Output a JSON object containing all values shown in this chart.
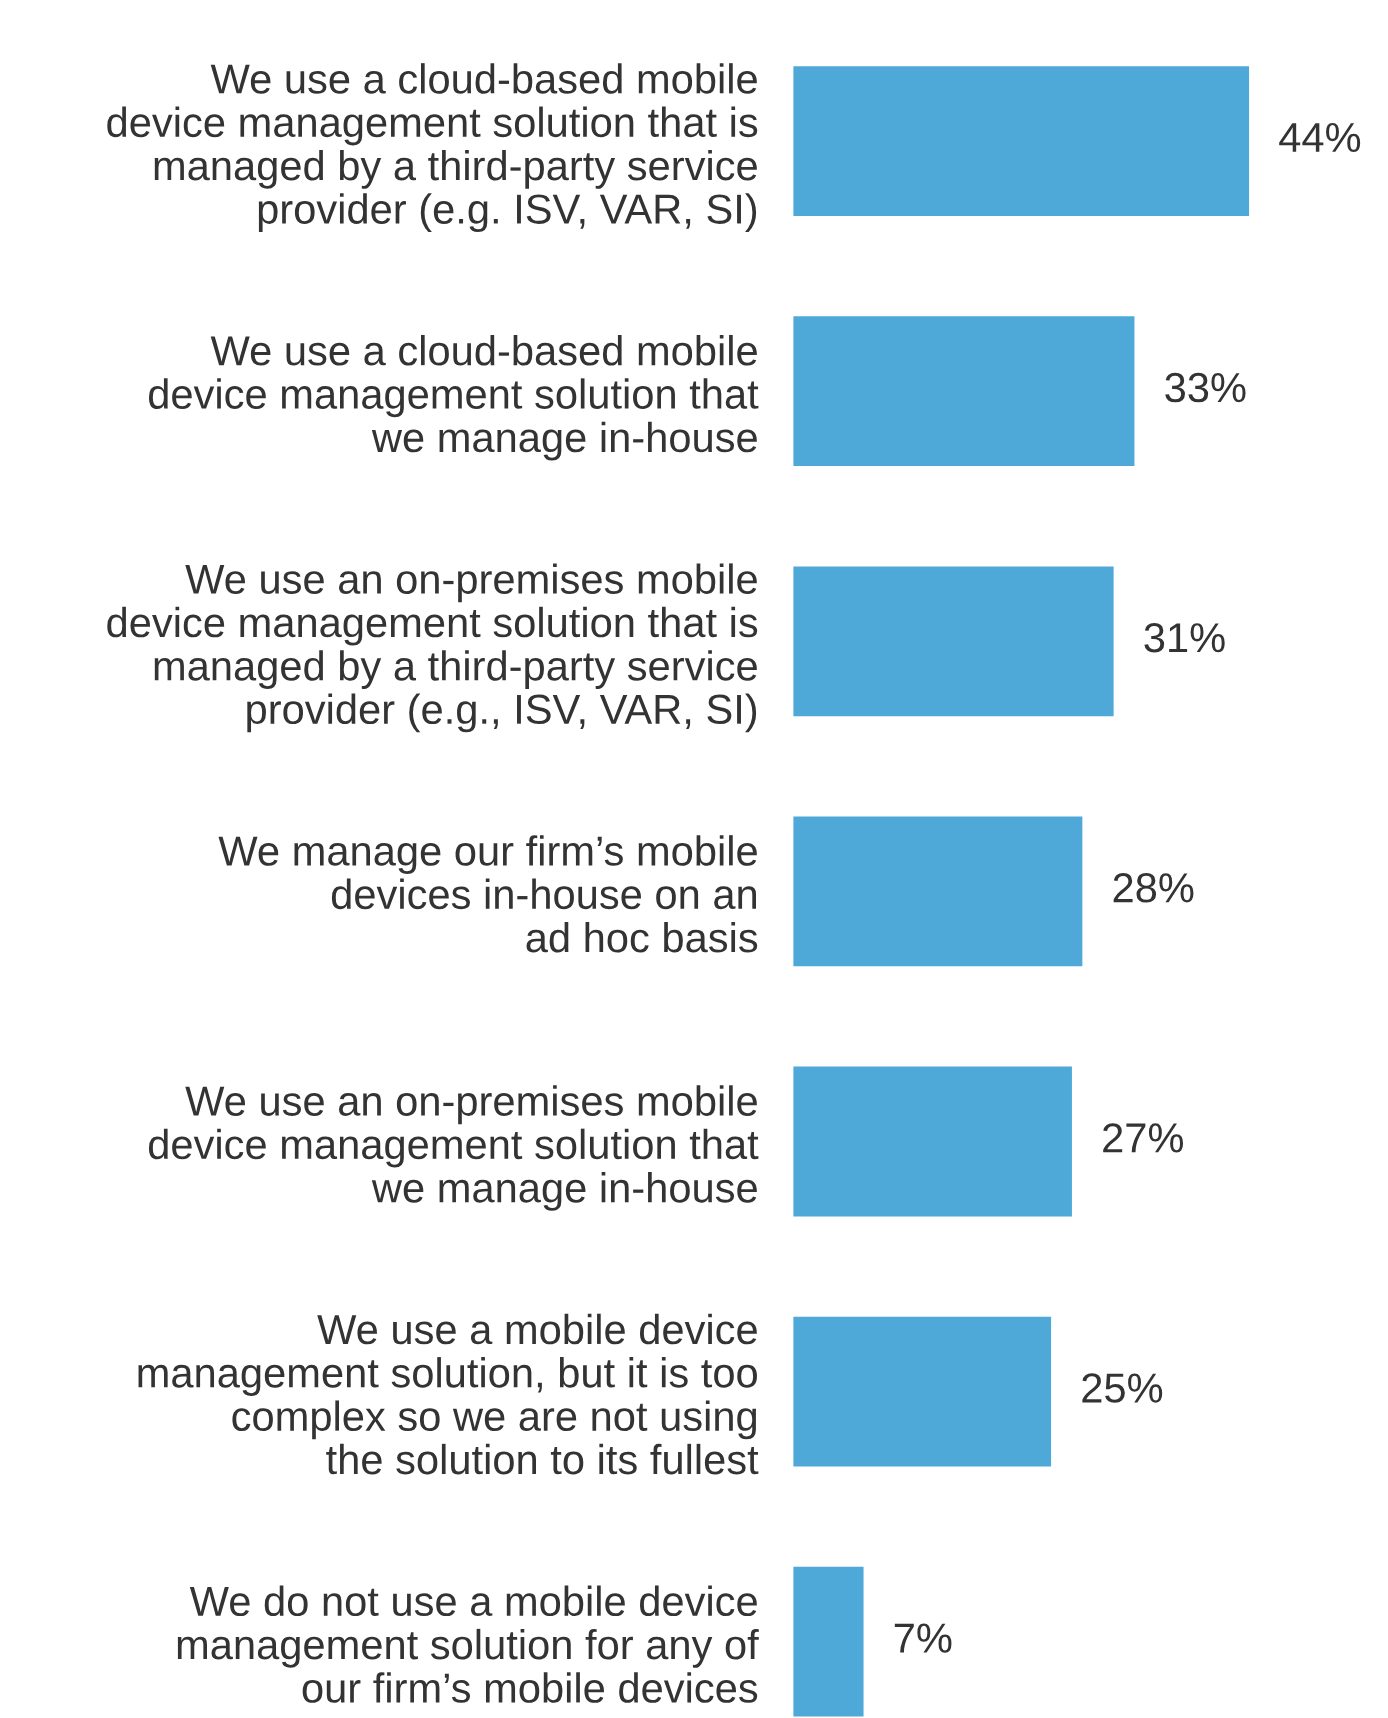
{
  "chart_data": {
    "type": "bar",
    "orientation": "horizontal",
    "categories": [
      "We use a cloud-based mobile\ndevice management solution that is\nmanaged by a third-party service\nprovider (e.g. ISV, VAR, SI)",
      "We use a cloud-based mobile\ndevice management solution that\nwe manage in-house",
      "We use an on-premises mobile\ndevice management solution that is\nmanaged by a third-party service\nprovider (e.g., ISV, VAR, SI)",
      "We manage our firm’s mobile\ndevices in-house on an\nad hoc basis",
      "We use an on-premises mobile\ndevice management solution that\nwe manage in-house",
      "We use a mobile device\nmanagement solution, but it is too\ncomplex so we are not using\nthe solution to its fullest",
      "We do not use a mobile device\nmanagement solution for any of\nour firm’s mobile devices"
    ],
    "values": [
      44,
      33,
      31,
      28,
      27,
      25,
      7
    ],
    "value_labels": [
      "44%",
      "33%",
      "31%",
      "28%",
      "27%",
      "25%",
      "7%"
    ],
    "color": "#4ea9d8"
  }
}
